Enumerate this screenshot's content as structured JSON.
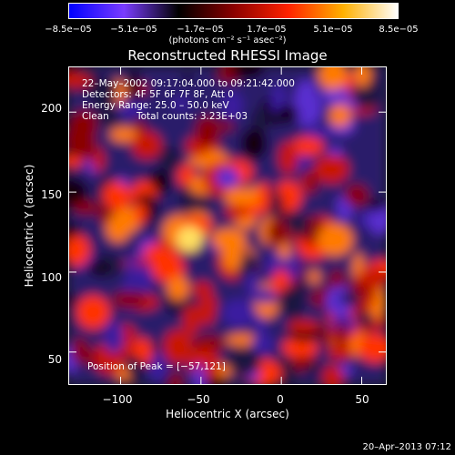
{
  "chart_data": {
    "type": "heatmap",
    "title": "Reconstructed RHESSI Image",
    "xlabel": "Heliocentric X (arcsec)",
    "ylabel": "Heliocentric Y (arcsec)",
    "xlim": [
      -132,
      65
    ],
    "ylim": [
      30,
      228
    ],
    "x_ticks": [
      -100,
      -50,
      0,
      50
    ],
    "x_tick_labels": [
      "−100",
      "−50",
      "0",
      "50"
    ],
    "y_ticks": [
      50,
      100,
      150,
      200
    ],
    "y_tick_labels": [
      "50",
      "100",
      "150",
      "200"
    ],
    "colorbar": {
      "range": [
        -8.5e-05,
        8.5e-05
      ],
      "tick_labels": [
        "−8.5e−05",
        "−5.1e−05",
        "−1.7e−05",
        "1.7e−05",
        "5.1e−05",
        "8.5e−05"
      ],
      "unit": "(photons cm⁻² s⁻¹ asec⁻²)",
      "colors": [
        "#0000ff",
        "#7a3cff",
        "#000000",
        "#8a0000",
        "#ff2200",
        "#ffb000",
        "#ffffff"
      ]
    },
    "annotations": {
      "time_range": "22–May–2002 09:17:04.000 to 09:21:42.000",
      "detectors": "Detectors: 4F 5F 6F 7F 8F, Att 0",
      "energy": "Energy Range: 25.0 – 50.0 keV",
      "algorithm": "Clean",
      "counts": "Total counts: 3.23E+03",
      "peak": "Position of Peak = [−57,121]"
    },
    "peak": {
      "x": -57,
      "y": 121
    }
  },
  "footer": {
    "date": "20–Apr–2013 07:12"
  }
}
